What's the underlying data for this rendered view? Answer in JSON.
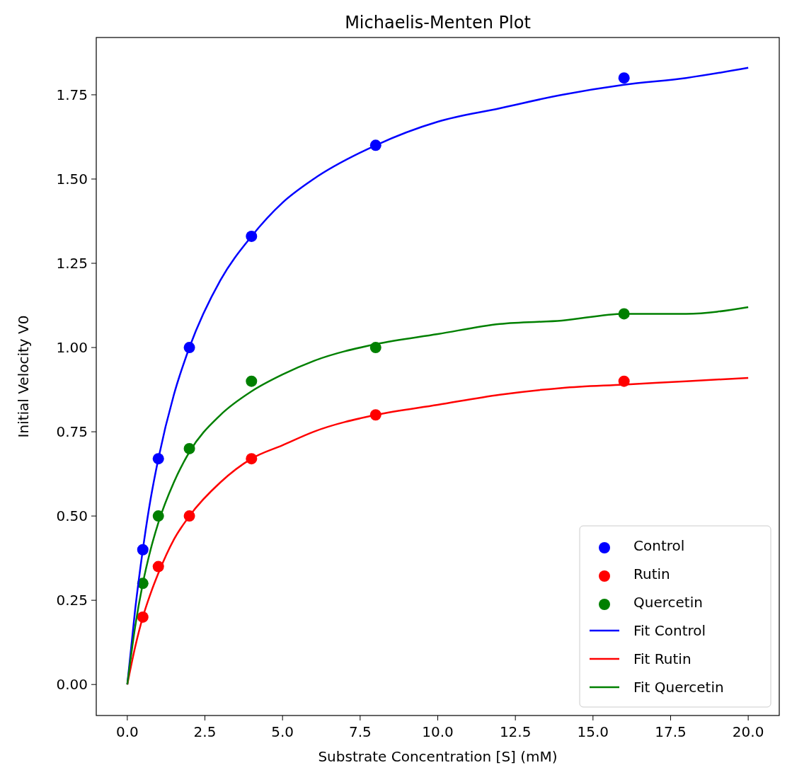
{
  "chart_data": {
    "type": "scatter",
    "title": "Michaelis-Menten Plot",
    "xlabel": "Substrate Concentration [S] (mM)",
    "ylabel": "Initial Velocity V0",
    "x": [
      0.5,
      1,
      2,
      4,
      8,
      16
    ],
    "series": [
      {
        "name": "Control",
        "color": "#0000ff",
        "values": [
          0.4,
          0.67,
          1.0,
          1.33,
          1.6,
          1.8
        ],
        "marker": "circle"
      },
      {
        "name": "Rutin",
        "color": "#ff0000",
        "values": [
          0.2,
          0.35,
          0.5,
          0.67,
          0.8,
          0.9
        ],
        "marker": "circle"
      },
      {
        "name": "Quercetin",
        "color": "#008000",
        "values": [
          0.3,
          0.5,
          0.7,
          0.9,
          1.0,
          1.1
        ],
        "marker": "circle"
      },
      {
        "name": "Fit Control",
        "type": "line",
        "color": "#0000ff",
        "x": [
          0,
          0.25,
          0.5,
          0.75,
          1,
          1.5,
          2,
          3,
          4,
          5,
          6,
          8,
          10,
          12,
          14,
          16,
          18,
          20
        ],
        "values": [
          0,
          0.22,
          0.4,
          0.55,
          0.67,
          0.86,
          1.0,
          1.2,
          1.33,
          1.43,
          1.5,
          1.6,
          1.67,
          1.71,
          1.75,
          1.78,
          1.8,
          1.83
        ],
        "line_style": "solid"
      },
      {
        "name": "Fit Rutin",
        "type": "line",
        "color": "#ff0000",
        "x": [
          0,
          0.25,
          0.5,
          0.75,
          1,
          1.5,
          2,
          3,
          4,
          5,
          6,
          8,
          10,
          12,
          14,
          16,
          18,
          20
        ],
        "values": [
          0,
          0.11,
          0.2,
          0.27,
          0.33,
          0.43,
          0.5,
          0.6,
          0.67,
          0.71,
          0.75,
          0.8,
          0.83,
          0.86,
          0.88,
          0.89,
          0.9,
          0.91
        ],
        "line_style": "solid"
      },
      {
        "name": "Fit Quercetin",
        "type": "line",
        "color": "#008000",
        "x": [
          0,
          0.25,
          0.5,
          0.75,
          1,
          1.5,
          2,
          3,
          4,
          5,
          6,
          8,
          10,
          12,
          14,
          16,
          18,
          20
        ],
        "values": [
          0,
          0.17,
          0.3,
          0.4,
          0.48,
          0.6,
          0.69,
          0.8,
          0.87,
          0.92,
          0.96,
          1.01,
          1.04,
          1.07,
          1.08,
          1.1,
          1.1,
          1.12
        ],
        "line_style": "solid"
      }
    ],
    "xlim": [
      -1,
      21
    ],
    "xticks": [
      {
        "value": 0,
        "label": "0.0"
      },
      2.5,
      {
        "value": 5,
        "label": "5.0"
      },
      7.5,
      {
        "value": 10,
        "label": "10.0"
      },
      12.5,
      {
        "value": 15,
        "label": "15.0"
      },
      17.5,
      {
        "value": 20,
        "label": "20.0"
      }
    ],
    "ylim": [
      -0.092,
      1.92
    ],
    "yticks": [
      {
        "value": 0,
        "label": "0.00"
      },
      0.25,
      {
        "value": 0.5,
        "label": "0.50"
      },
      0.75,
      {
        "value": 1,
        "label": "1.00"
      },
      1.25,
      {
        "value": 1.5,
        "label": "1.50"
      },
      1.75
    ],
    "grid": false,
    "legend": "bottom right"
  }
}
